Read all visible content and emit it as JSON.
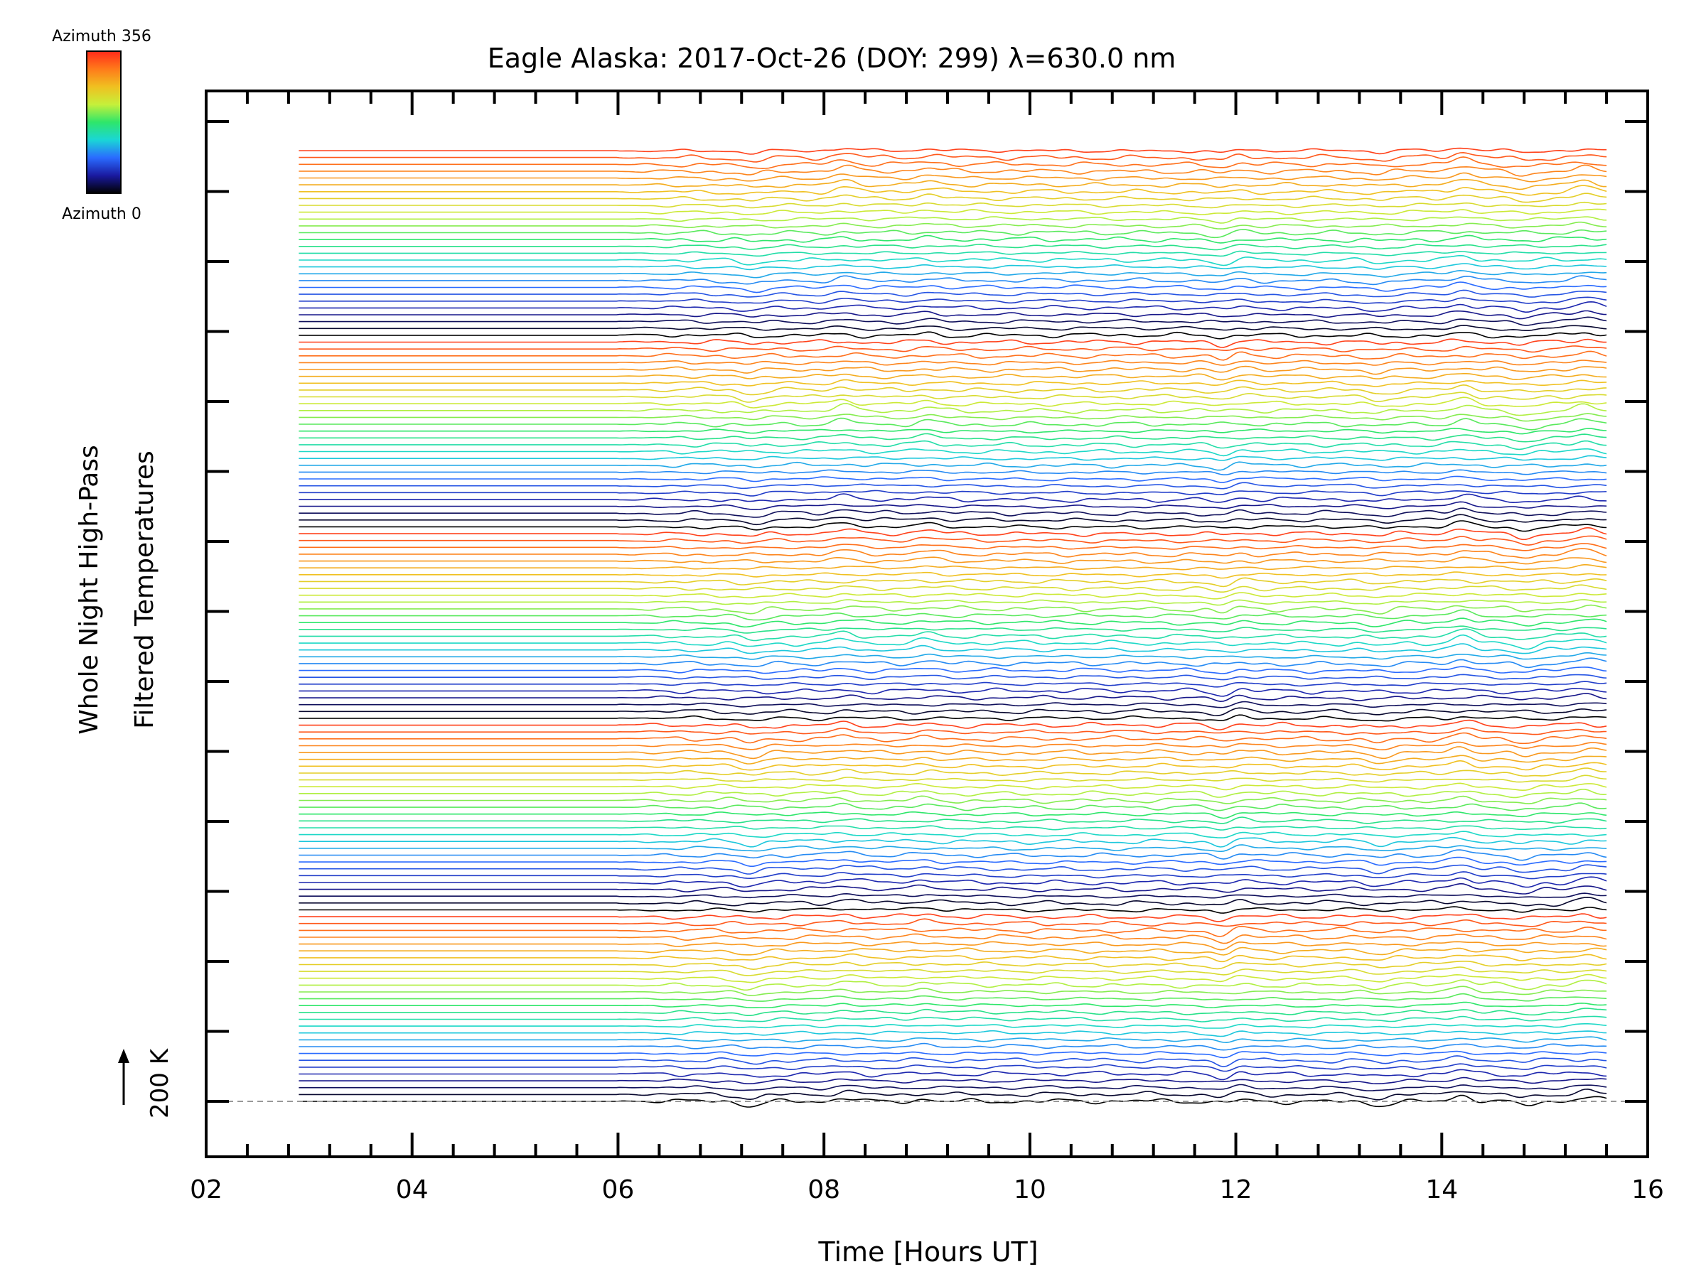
{
  "chart_data": {
    "type": "line",
    "title": "Eagle Alaska: 2017-Oct-26 (DOY: 299) λ=630.0 nm",
    "xlabel": "Time [Hours UT]",
    "ylabel_line1": "Whole Night High-Pass",
    "ylabel_line2": "Filtered Temperatures",
    "scale_label": "200 K",
    "xlim": [
      2,
      16
    ],
    "x_ticks": [
      "02",
      "04",
      "06",
      "08",
      "10",
      "12",
      "14",
      "16"
    ],
    "data_start_hour": 2.9,
    "data_end_hour": 15.6,
    "activity_onset_hour": 6.0,
    "num_traces": 140,
    "trace_offset_K": 10,
    "azimuth_range": [
      0,
      356
    ],
    "azimuth_cycles": 5,
    "colorbar": {
      "top_label": "Azimuth  356",
      "bottom_label": "Azimuth  0",
      "colors": [
        "#000000",
        "#1a1aa0",
        "#2a6bff",
        "#1ad6d6",
        "#2ee66a",
        "#c6f03a",
        "#f0c020",
        "#ff7a1a",
        "#ff2a1a"
      ]
    },
    "common_features": [
      {
        "time": 7.3,
        "amplitude_K": -5
      },
      {
        "time": 8.2,
        "amplitude_K": 5
      },
      {
        "time": 9.0,
        "amplitude_K": 4
      },
      {
        "time": 11.9,
        "amplitude_K": -8
      },
      {
        "time": 12.0,
        "amplitude_K": 6
      },
      {
        "time": 13.4,
        "amplitude_K": -4
      },
      {
        "time": 14.2,
        "amplitude_K": 7
      },
      {
        "time": 14.8,
        "amplitude_K": -5
      },
      {
        "time": 15.4,
        "amplitude_K": 6
      }
    ]
  }
}
